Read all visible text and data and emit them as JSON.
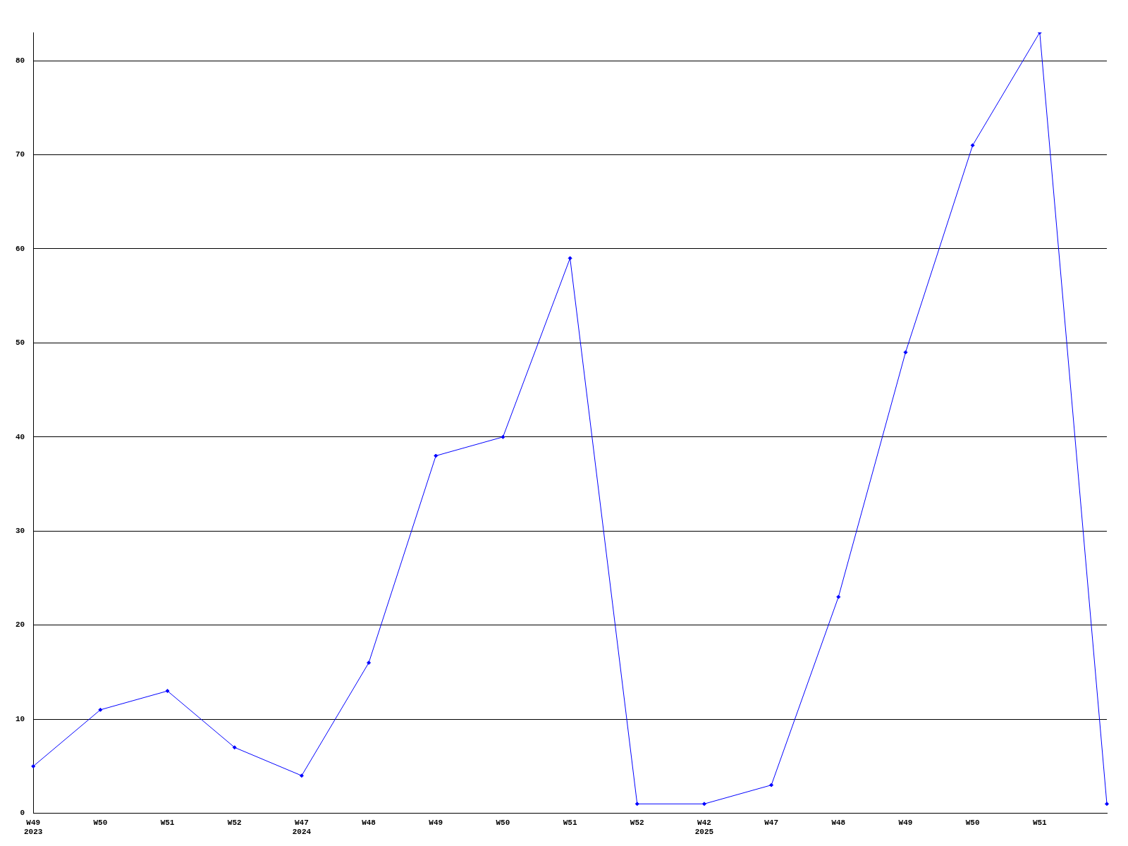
{
  "chart_data": {
    "type": "line",
    "categories": [
      "W49\n2023",
      "W50",
      "W51",
      "W52",
      "W47\n2024",
      "W48",
      "W49",
      "W50",
      "W51",
      "W52",
      "W42\n2025",
      "W47",
      "W48",
      "W49",
      "W50",
      "W51",
      null
    ],
    "series": [
      {
        "color": "#0000ff",
        "values": [
          5,
          11,
          13,
          7,
          4,
          16,
          38,
          40,
          59,
          1,
          1,
          3,
          23,
          49,
          71,
          83,
          1
        ]
      }
    ],
    "ylim": [
      0,
      83
    ],
    "yticks": [
      0,
      10,
      20,
      30,
      40,
      50,
      60,
      70,
      80
    ],
    "grid": "y",
    "legend": false,
    "marker": "diamond",
    "line_style": "solid"
  }
}
